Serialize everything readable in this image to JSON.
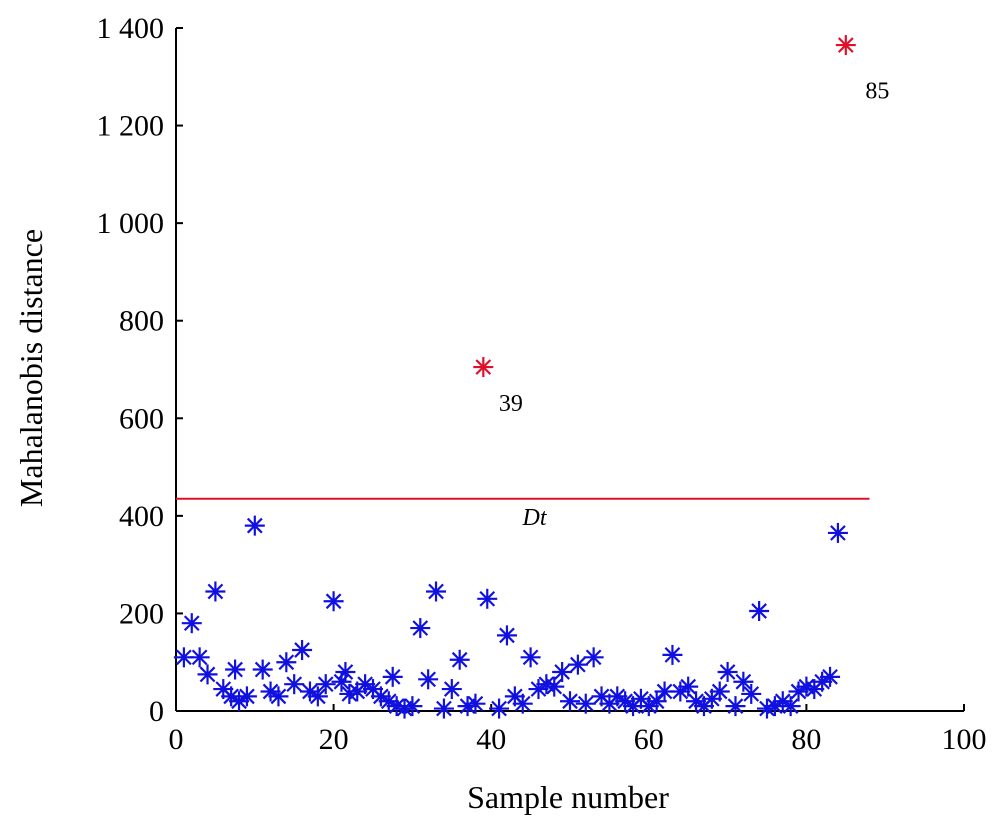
{
  "chart_data": {
    "type": "scatter",
    "xlabel": "Sample number",
    "ylabel": "Mahalanobis distance",
    "xlim": [
      0,
      100
    ],
    "ylim": [
      0,
      1400
    ],
    "xticks": [
      0,
      20,
      40,
      60,
      80,
      100
    ],
    "xtick_labels": [
      "0",
      "20",
      "40",
      "60",
      "80",
      "100"
    ],
    "yticks": [
      0,
      200,
      400,
      600,
      800,
      1000,
      1200,
      1400
    ],
    "ytick_labels": [
      "0",
      "200",
      "400",
      "600",
      "800",
      "1 000",
      "1 200",
      "1 400"
    ],
    "grid": false,
    "marker": "asterisk",
    "colors": {
      "normal": "#1010e0",
      "outlier": "#e0102a",
      "threshold": "#e0102a",
      "axis": "#000000"
    },
    "series": [
      {
        "points": [
          [
            1,
            110
          ],
          [
            2,
            180
          ],
          [
            3,
            110
          ],
          [
            4,
            75
          ],
          [
            5,
            245
          ],
          [
            6,
            45
          ],
          [
            7,
            30
          ],
          [
            7.5,
            85
          ],
          [
            8,
            20
          ],
          [
            9,
            30
          ],
          [
            10,
            380
          ],
          [
            11,
            85
          ],
          [
            12,
            40
          ],
          [
            13,
            30
          ],
          [
            14,
            100
          ],
          [
            15,
            55
          ],
          [
            16,
            125
          ],
          [
            17,
            40
          ],
          [
            18,
            30
          ],
          [
            19,
            55
          ],
          [
            20,
            225
          ],
          [
            21,
            60
          ],
          [
            21.5,
            80
          ],
          [
            22,
            35
          ],
          [
            23,
            40
          ],
          [
            24,
            55
          ],
          [
            25,
            45
          ],
          [
            26,
            30
          ],
          [
            27,
            20
          ],
          [
            27.5,
            70
          ],
          [
            28,
            10
          ],
          [
            29,
            5
          ],
          [
            30,
            10
          ],
          [
            31,
            170
          ],
          [
            32,
            65
          ],
          [
            33,
            245
          ],
          [
            34,
            5
          ],
          [
            35,
            45
          ],
          [
            36,
            105
          ],
          [
            37,
            10
          ],
          [
            38,
            15
          ],
          [
            39.5,
            230
          ],
          [
            41,
            5
          ],
          [
            42,
            155
          ],
          [
            43,
            30
          ],
          [
            44,
            15
          ],
          [
            45,
            110
          ],
          [
            46,
            45
          ],
          [
            47,
            55
          ],
          [
            48,
            50
          ],
          [
            49,
            80
          ],
          [
            50,
            20
          ],
          [
            51,
            95
          ],
          [
            52,
            15
          ],
          [
            53,
            110
          ],
          [
            54,
            30
          ],
          [
            55,
            15
          ],
          [
            56,
            30
          ],
          [
            57,
            20
          ],
          [
            58,
            10
          ],
          [
            59,
            25
          ],
          [
            60,
            10
          ],
          [
            61,
            20
          ],
          [
            62,
            40
          ],
          [
            63,
            115
          ],
          [
            64,
            40
          ],
          [
            65,
            50
          ],
          [
            66,
            20
          ],
          [
            67,
            10
          ],
          [
            68,
            25
          ],
          [
            69,
            40
          ],
          [
            70,
            80
          ],
          [
            71,
            10
          ],
          [
            72,
            60
          ],
          [
            73,
            35
          ],
          [
            74,
            205
          ],
          [
            75,
            5
          ],
          [
            76,
            10
          ],
          [
            77,
            20
          ],
          [
            78,
            10
          ],
          [
            79,
            40
          ],
          [
            80,
            50
          ],
          [
            81,
            45
          ],
          [
            82,
            60
          ],
          [
            83,
            70
          ],
          [
            84,
            365
          ]
        ]
      },
      {
        "points": [
          [
            39,
            705
          ],
          [
            85,
            1365
          ]
        ]
      }
    ],
    "threshold": {
      "label": "Dt",
      "y": 435,
      "x_start": 0,
      "x_end": 88
    },
    "annotations": [
      {
        "text": "39",
        "x": 42.5,
        "y": 615
      },
      {
        "text": "85",
        "x": 89,
        "y": 1255
      }
    ]
  }
}
